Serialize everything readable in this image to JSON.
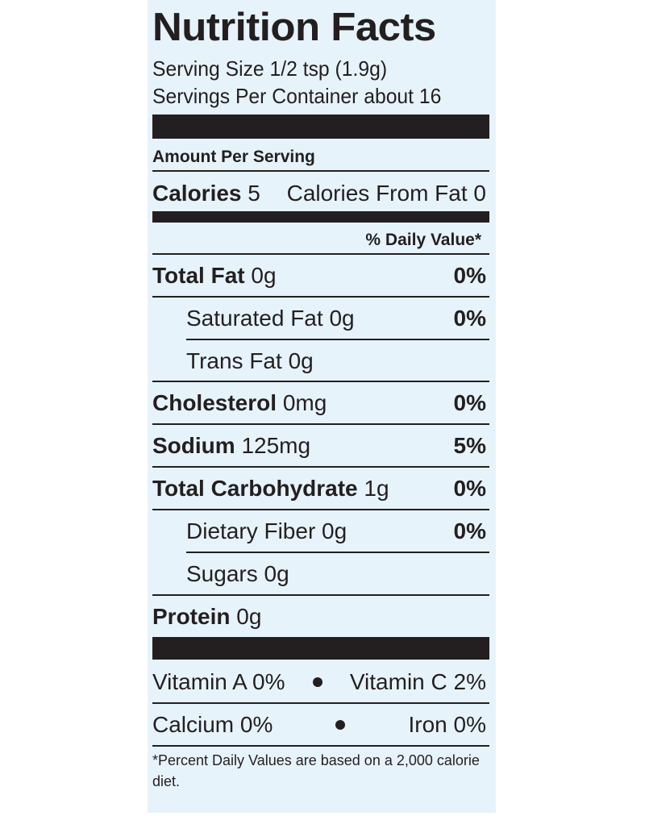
{
  "label": {
    "title": "Nutrition Facts",
    "serving_size": "Serving Size 1/2 tsp (1.9g)",
    "servings_per_container": "Servings Per Container about 16",
    "amount_per_serving": "Amount Per Serving",
    "calories_label": "Calories",
    "calories_value": "5",
    "calories_from_fat": "Calories From Fat 0",
    "daily_value_header": "% Daily Value*",
    "nutrients": [
      {
        "name": "Total Fat",
        "amount": "0g",
        "dv": "0%"
      },
      {
        "name": "Saturated Fat",
        "amount": "0g",
        "dv": "0%"
      },
      {
        "name": "Trans Fat",
        "amount": "0g",
        "dv": ""
      },
      {
        "name": "Cholesterol",
        "amount": "0mg",
        "dv": "0%"
      },
      {
        "name": "Sodium",
        "amount": "125mg",
        "dv": "5%"
      },
      {
        "name": "Total Carbohydrate",
        "amount": "1g",
        "dv": "0%"
      },
      {
        "name": "Dietary Fiber",
        "amount": "0g",
        "dv": "0%"
      },
      {
        "name": "Sugars",
        "amount": "0g",
        "dv": ""
      },
      {
        "name": "Protein",
        "amount": "0g",
        "dv": ""
      }
    ],
    "vitamins": [
      {
        "left": "Vitamin A 0%",
        "right": "Vitamin C 2%"
      },
      {
        "left": "Calcium 0%",
        "right": "Iron 0%"
      }
    ],
    "footnote": "*Percent Daily Values are based on a 2,000 calorie diet."
  }
}
